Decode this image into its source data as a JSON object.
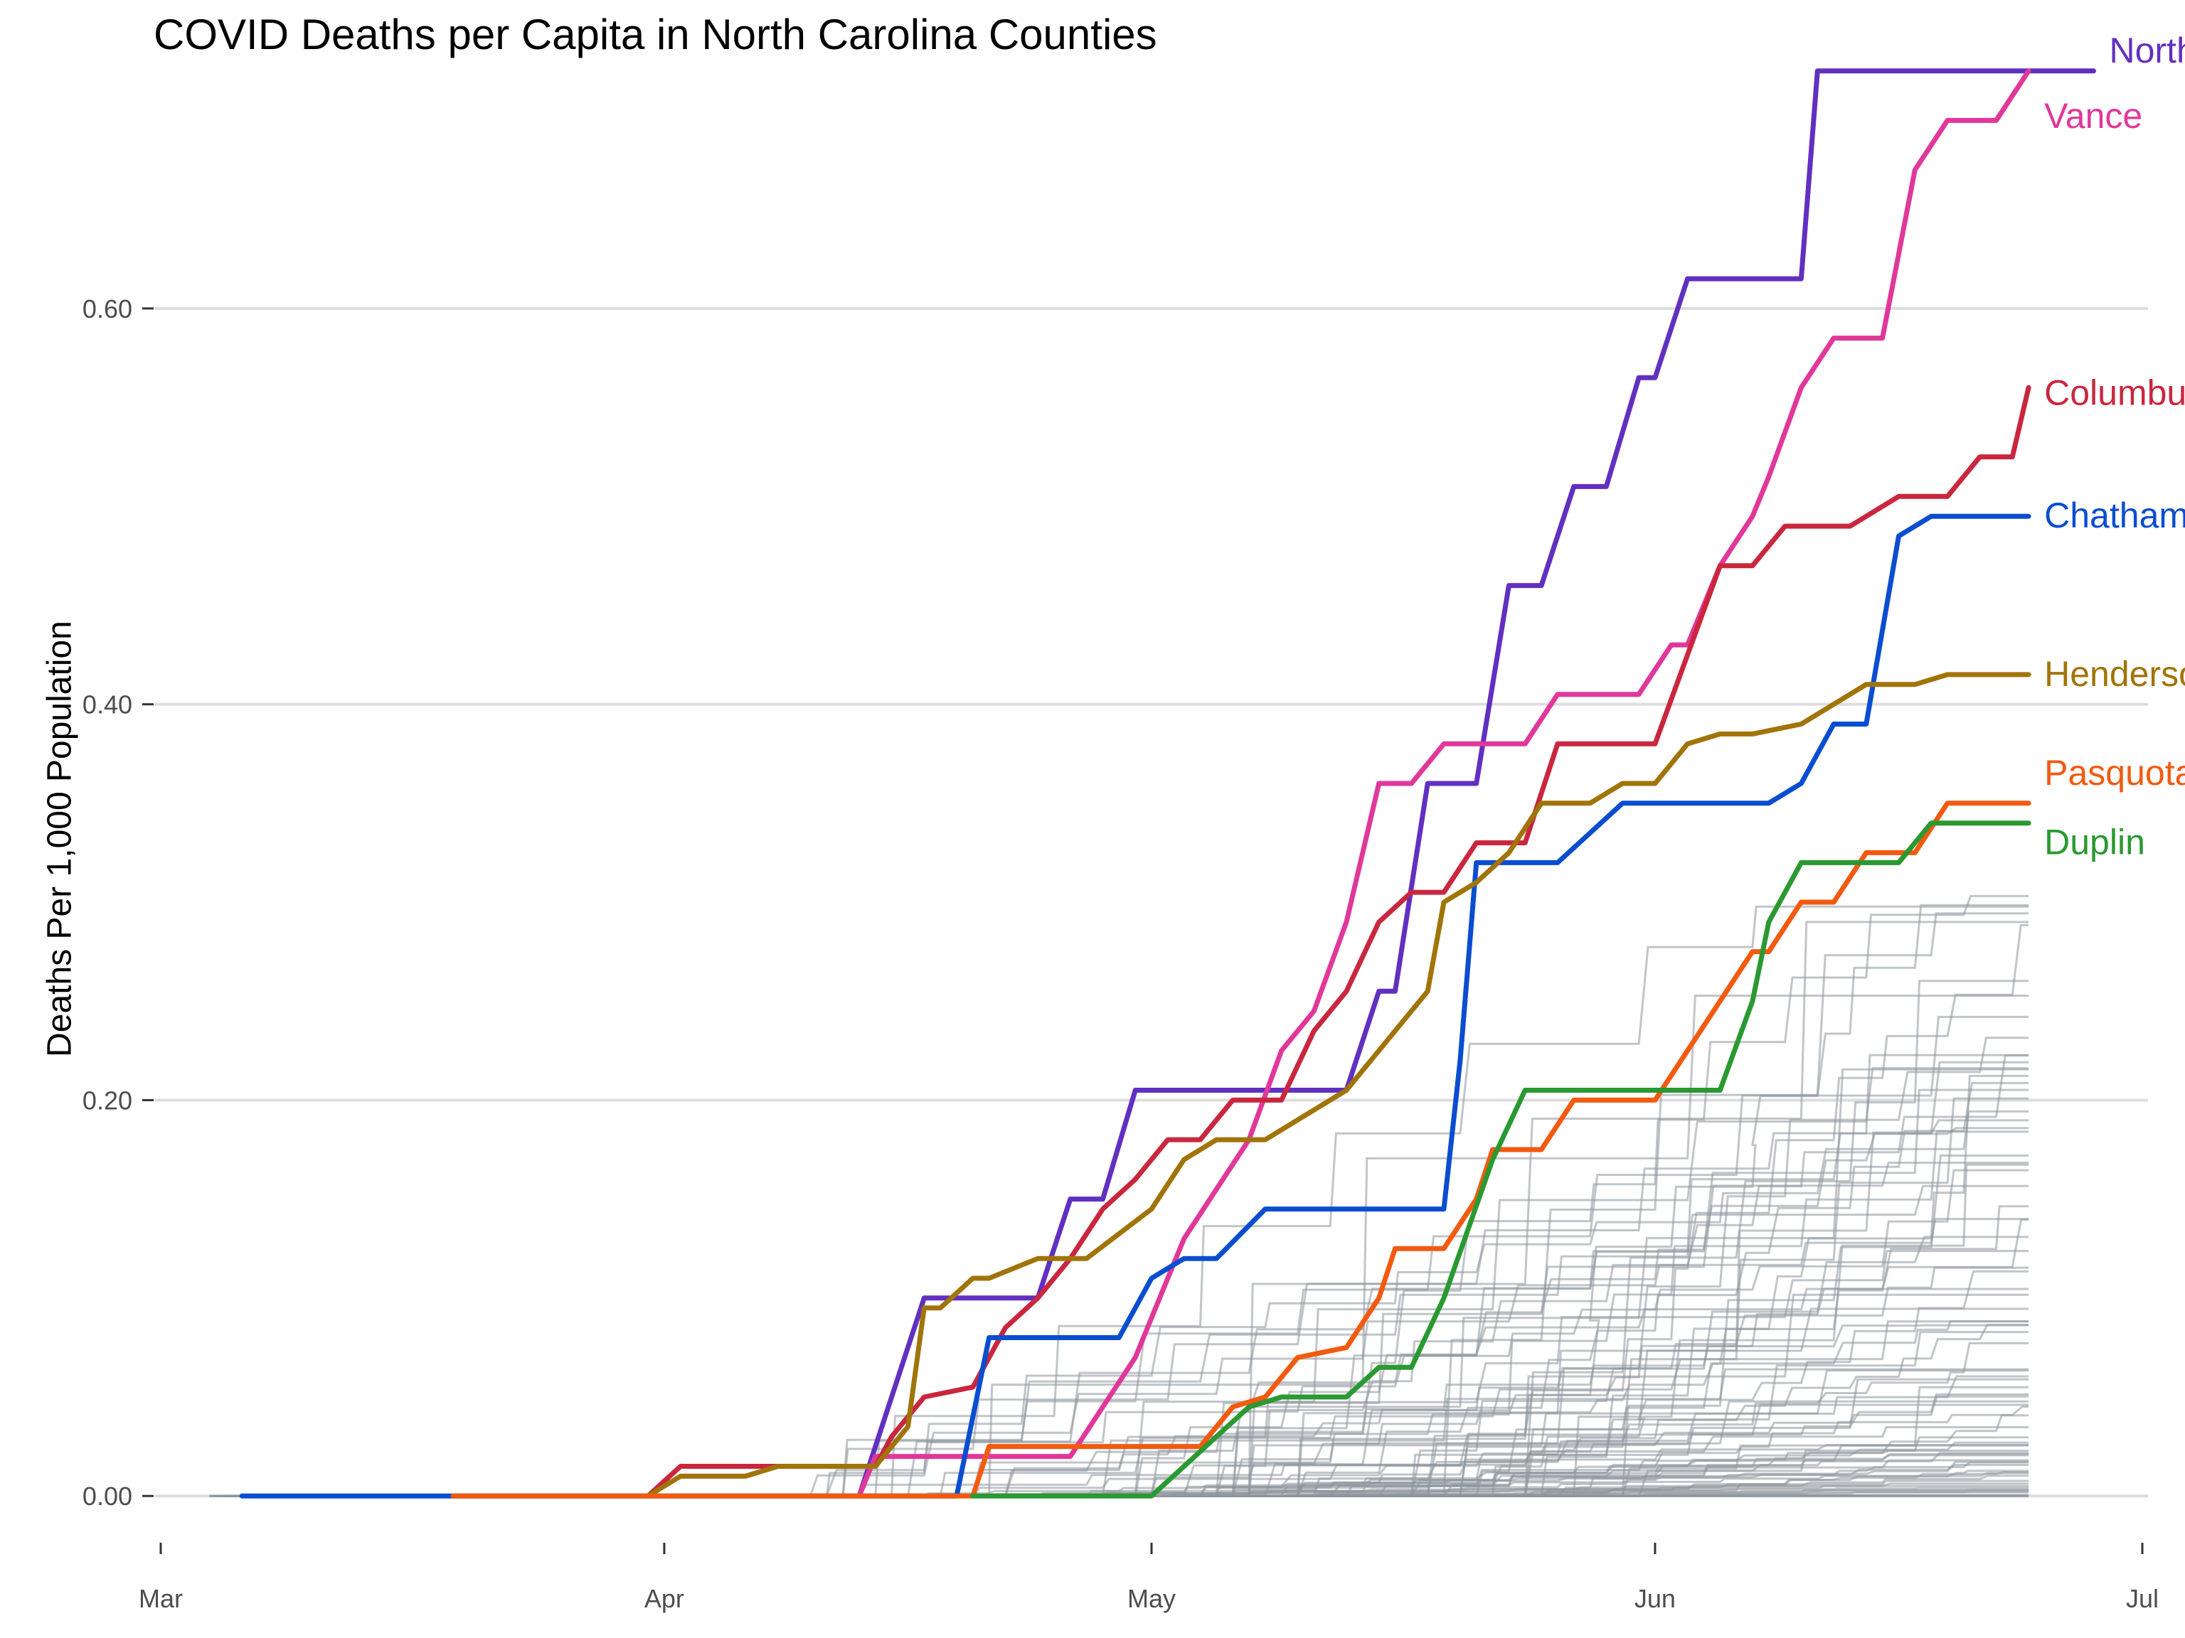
{
  "chart_data": {
    "type": "line",
    "title": "COVID Deaths per Capita in North Carolina Counties",
    "xlabel": "",
    "ylabel": "Deaths Per 1,000 Population",
    "x_axis": {
      "ticks": [
        "Mar",
        "Apr",
        "May",
        "Jun",
        "Jul"
      ],
      "range": [
        "2020-03-01",
        "2020-07-01"
      ]
    },
    "y_axis": {
      "ticks": [
        0.0,
        0.2,
        0.4,
        0.6
      ],
      "tick_labels": [
        "0.00",
        "0.20",
        "0.40",
        "0.60"
      ],
      "range": [
        -0.015,
        0.735
      ]
    },
    "grid": "horizontal",
    "legend": "none (direct line labels)",
    "colors": {
      "background_series": "#8e969d"
    },
    "series": [
      {
        "name": "Northampton",
        "color": "#6130c0",
        "label_y": 0.73,
        "points": [
          [
            "2020-04-13",
            0.0
          ],
          [
            "2020-04-15",
            0.05
          ],
          [
            "2020-04-17",
            0.1
          ],
          [
            "2020-04-24",
            0.1
          ],
          [
            "2020-04-26",
            0.15
          ],
          [
            "2020-04-28",
            0.15
          ],
          [
            "2020-04-30",
            0.205
          ],
          [
            "2020-05-13",
            0.205
          ],
          [
            "2020-05-15",
            0.255
          ],
          [
            "2020-05-16",
            0.255
          ],
          [
            "2020-05-18",
            0.36
          ],
          [
            "2020-05-21",
            0.36
          ],
          [
            "2020-05-23",
            0.46
          ],
          [
            "2020-05-25",
            0.46
          ],
          [
            "2020-05-27",
            0.51
          ],
          [
            "2020-05-29",
            0.51
          ],
          [
            "2020-05-31",
            0.565
          ],
          [
            "2020-06-01",
            0.565
          ],
          [
            "2020-06-03",
            0.615
          ],
          [
            "2020-06-06",
            0.615
          ],
          [
            "2020-06-10",
            0.615
          ],
          [
            "2020-06-11",
            0.72
          ],
          [
            "2020-06-24",
            0.72
          ],
          [
            "2020-06-28",
            0.72
          ]
        ]
      },
      {
        "name": "Vance",
        "color": "#e0389a",
        "label_y": 0.697,
        "points": [
          [
            "2020-04-13",
            0.0
          ],
          [
            "2020-04-14",
            0.02
          ],
          [
            "2020-04-26",
            0.02
          ],
          [
            "2020-04-28",
            0.045
          ],
          [
            "2020-04-30",
            0.07
          ],
          [
            "2020-05-01",
            0.09
          ],
          [
            "2020-05-03",
            0.13
          ],
          [
            "2020-05-05",
            0.155
          ],
          [
            "2020-05-07",
            0.18
          ],
          [
            "2020-05-09",
            0.225
          ],
          [
            "2020-05-11",
            0.245
          ],
          [
            "2020-05-13",
            0.29
          ],
          [
            "2020-05-15",
            0.36
          ],
          [
            "2020-05-17",
            0.36
          ],
          [
            "2020-05-19",
            0.38
          ],
          [
            "2020-05-24",
            0.38
          ],
          [
            "2020-05-26",
            0.405
          ],
          [
            "2020-05-31",
            0.405
          ],
          [
            "2020-06-02",
            0.43
          ],
          [
            "2020-06-03",
            0.43
          ],
          [
            "2020-06-05",
            0.47
          ],
          [
            "2020-06-07",
            0.495
          ],
          [
            "2020-06-08",
            0.515
          ],
          [
            "2020-06-10",
            0.56
          ],
          [
            "2020-06-12",
            0.585
          ],
          [
            "2020-06-15",
            0.585
          ],
          [
            "2020-06-17",
            0.67
          ],
          [
            "2020-06-19",
            0.695
          ],
          [
            "2020-06-22",
            0.695
          ],
          [
            "2020-06-24",
            0.72
          ]
        ]
      },
      {
        "name": "Columbus",
        "color": "#c9273e",
        "label_y": 0.557,
        "points": [
          [
            "2020-03-31",
            0.0
          ],
          [
            "2020-04-02",
            0.015
          ],
          [
            "2020-04-14",
            0.015
          ],
          [
            "2020-04-15",
            0.03
          ],
          [
            "2020-04-17",
            0.05
          ],
          [
            "2020-04-20",
            0.055
          ],
          [
            "2020-04-22",
            0.085
          ],
          [
            "2020-04-24",
            0.1
          ],
          [
            "2020-04-26",
            0.12
          ],
          [
            "2020-04-28",
            0.145
          ],
          [
            "2020-04-30",
            0.16
          ],
          [
            "2020-05-02",
            0.18
          ],
          [
            "2020-05-04",
            0.18
          ],
          [
            "2020-05-06",
            0.2
          ],
          [
            "2020-05-09",
            0.2
          ],
          [
            "2020-05-11",
            0.235
          ],
          [
            "2020-05-13",
            0.255
          ],
          [
            "2020-05-15",
            0.29
          ],
          [
            "2020-05-17",
            0.305
          ],
          [
            "2020-05-19",
            0.305
          ],
          [
            "2020-05-21",
            0.33
          ],
          [
            "2020-05-24",
            0.33
          ],
          [
            "2020-05-26",
            0.38
          ],
          [
            "2020-06-01",
            0.38
          ],
          [
            "2020-06-03",
            0.425
          ],
          [
            "2020-06-05",
            0.47
          ],
          [
            "2020-06-07",
            0.47
          ],
          [
            "2020-06-09",
            0.49
          ],
          [
            "2020-06-13",
            0.49
          ],
          [
            "2020-06-16",
            0.505
          ],
          [
            "2020-06-19",
            0.505
          ],
          [
            "2020-06-21",
            0.525
          ],
          [
            "2020-06-23",
            0.525
          ],
          [
            "2020-06-24",
            0.56
          ]
        ]
      },
      {
        "name": "Chatham",
        "color": "#0a4dd0",
        "label_y": 0.495,
        "points": [
          [
            "2020-03-06",
            0.0
          ],
          [
            "2020-04-19",
            0.0
          ],
          [
            "2020-04-21",
            0.08
          ],
          [
            "2020-04-29",
            0.08
          ],
          [
            "2020-05-01",
            0.11
          ],
          [
            "2020-05-03",
            0.12
          ],
          [
            "2020-05-05",
            0.12
          ],
          [
            "2020-05-08",
            0.145
          ],
          [
            "2020-05-19",
            0.145
          ],
          [
            "2020-05-20",
            0.22
          ],
          [
            "2020-05-21",
            0.32
          ],
          [
            "2020-05-26",
            0.32
          ],
          [
            "2020-05-28",
            0.335
          ],
          [
            "2020-05-30",
            0.35
          ],
          [
            "2020-06-08",
            0.35
          ],
          [
            "2020-06-10",
            0.36
          ],
          [
            "2020-06-12",
            0.39
          ],
          [
            "2020-06-14",
            0.39
          ],
          [
            "2020-06-16",
            0.485
          ],
          [
            "2020-06-18",
            0.495
          ],
          [
            "2020-06-24",
            0.495
          ]
        ]
      },
      {
        "name": "Henderson",
        "color": "#a17409",
        "label_y": 0.415,
        "points": [
          [
            "2020-03-31",
            0.0
          ],
          [
            "2020-04-02",
            0.01
          ],
          [
            "2020-04-06",
            0.01
          ],
          [
            "2020-04-08",
            0.015
          ],
          [
            "2020-04-14",
            0.015
          ],
          [
            "2020-04-16",
            0.035
          ],
          [
            "2020-04-17",
            0.095
          ],
          [
            "2020-04-18",
            0.095
          ],
          [
            "2020-04-20",
            0.11
          ],
          [
            "2020-04-21",
            0.11
          ],
          [
            "2020-04-24",
            0.12
          ],
          [
            "2020-04-27",
            0.12
          ],
          [
            "2020-05-01",
            0.145
          ],
          [
            "2020-05-03",
            0.17
          ],
          [
            "2020-05-05",
            0.18
          ],
          [
            "2020-05-08",
            0.18
          ],
          [
            "2020-05-10",
            0.19
          ],
          [
            "2020-05-13",
            0.205
          ],
          [
            "2020-05-15",
            0.225
          ],
          [
            "2020-05-16",
            0.235
          ],
          [
            "2020-05-18",
            0.255
          ],
          [
            "2020-05-19",
            0.3
          ],
          [
            "2020-05-21",
            0.31
          ],
          [
            "2020-05-23",
            0.325
          ],
          [
            "2020-05-25",
            0.35
          ],
          [
            "2020-05-28",
            0.35
          ],
          [
            "2020-05-30",
            0.36
          ],
          [
            "2020-06-01",
            0.36
          ],
          [
            "2020-06-03",
            0.38
          ],
          [
            "2020-06-05",
            0.385
          ],
          [
            "2020-06-07",
            0.385
          ],
          [
            "2020-06-10",
            0.39
          ],
          [
            "2020-06-12",
            0.4
          ],
          [
            "2020-06-14",
            0.41
          ],
          [
            "2020-06-17",
            0.41
          ],
          [
            "2020-06-19",
            0.415
          ],
          [
            "2020-06-24",
            0.415
          ]
        ]
      },
      {
        "name": "Pasquotank",
        "color": "#f25a10",
        "label_y": 0.365,
        "points": [
          [
            "2020-03-19",
            0.0
          ],
          [
            "2020-04-20",
            0.0
          ],
          [
            "2020-04-21",
            0.025
          ],
          [
            "2020-05-01",
            0.025
          ],
          [
            "2020-05-04",
            0.025
          ],
          [
            "2020-05-06",
            0.045
          ],
          [
            "2020-05-08",
            0.05
          ],
          [
            "2020-05-10",
            0.07
          ],
          [
            "2020-05-13",
            0.075
          ],
          [
            "2020-05-15",
            0.1
          ],
          [
            "2020-05-16",
            0.125
          ],
          [
            "2020-05-19",
            0.125
          ],
          [
            "2020-05-21",
            0.15
          ],
          [
            "2020-05-22",
            0.175
          ],
          [
            "2020-05-25",
            0.175
          ],
          [
            "2020-05-27",
            0.2
          ],
          [
            "2020-05-29",
            0.2
          ],
          [
            "2020-06-01",
            0.2
          ],
          [
            "2020-06-03",
            0.225
          ],
          [
            "2020-06-05",
            0.25
          ],
          [
            "2020-06-07",
            0.275
          ],
          [
            "2020-06-08",
            0.275
          ],
          [
            "2020-06-10",
            0.3
          ],
          [
            "2020-06-12",
            0.3
          ],
          [
            "2020-06-14",
            0.325
          ],
          [
            "2020-06-17",
            0.325
          ],
          [
            "2020-06-19",
            0.35
          ],
          [
            "2020-06-24",
            0.35
          ]
        ]
      },
      {
        "name": "Duplin",
        "color": "#2a9931",
        "label_y": 0.33,
        "points": [
          [
            "2020-04-20",
            0.0
          ],
          [
            "2020-05-01",
            0.0
          ],
          [
            "2020-05-03",
            0.015
          ],
          [
            "2020-05-05",
            0.03
          ],
          [
            "2020-05-07",
            0.045
          ],
          [
            "2020-05-09",
            0.05
          ],
          [
            "2020-05-13",
            0.05
          ],
          [
            "2020-05-15",
            0.065
          ],
          [
            "2020-05-17",
            0.065
          ],
          [
            "2020-05-19",
            0.1
          ],
          [
            "2020-05-22",
            0.17
          ],
          [
            "2020-05-24",
            0.205
          ],
          [
            "2020-05-28",
            0.205
          ],
          [
            "2020-06-05",
            0.205
          ],
          [
            "2020-06-07",
            0.25
          ],
          [
            "2020-06-08",
            0.29
          ],
          [
            "2020-06-10",
            0.32
          ],
          [
            "2020-06-12",
            0.32
          ],
          [
            "2020-06-16",
            0.32
          ],
          [
            "2020-06-18",
            0.34
          ],
          [
            "2020-06-24",
            0.34
          ]
        ]
      }
    ]
  }
}
